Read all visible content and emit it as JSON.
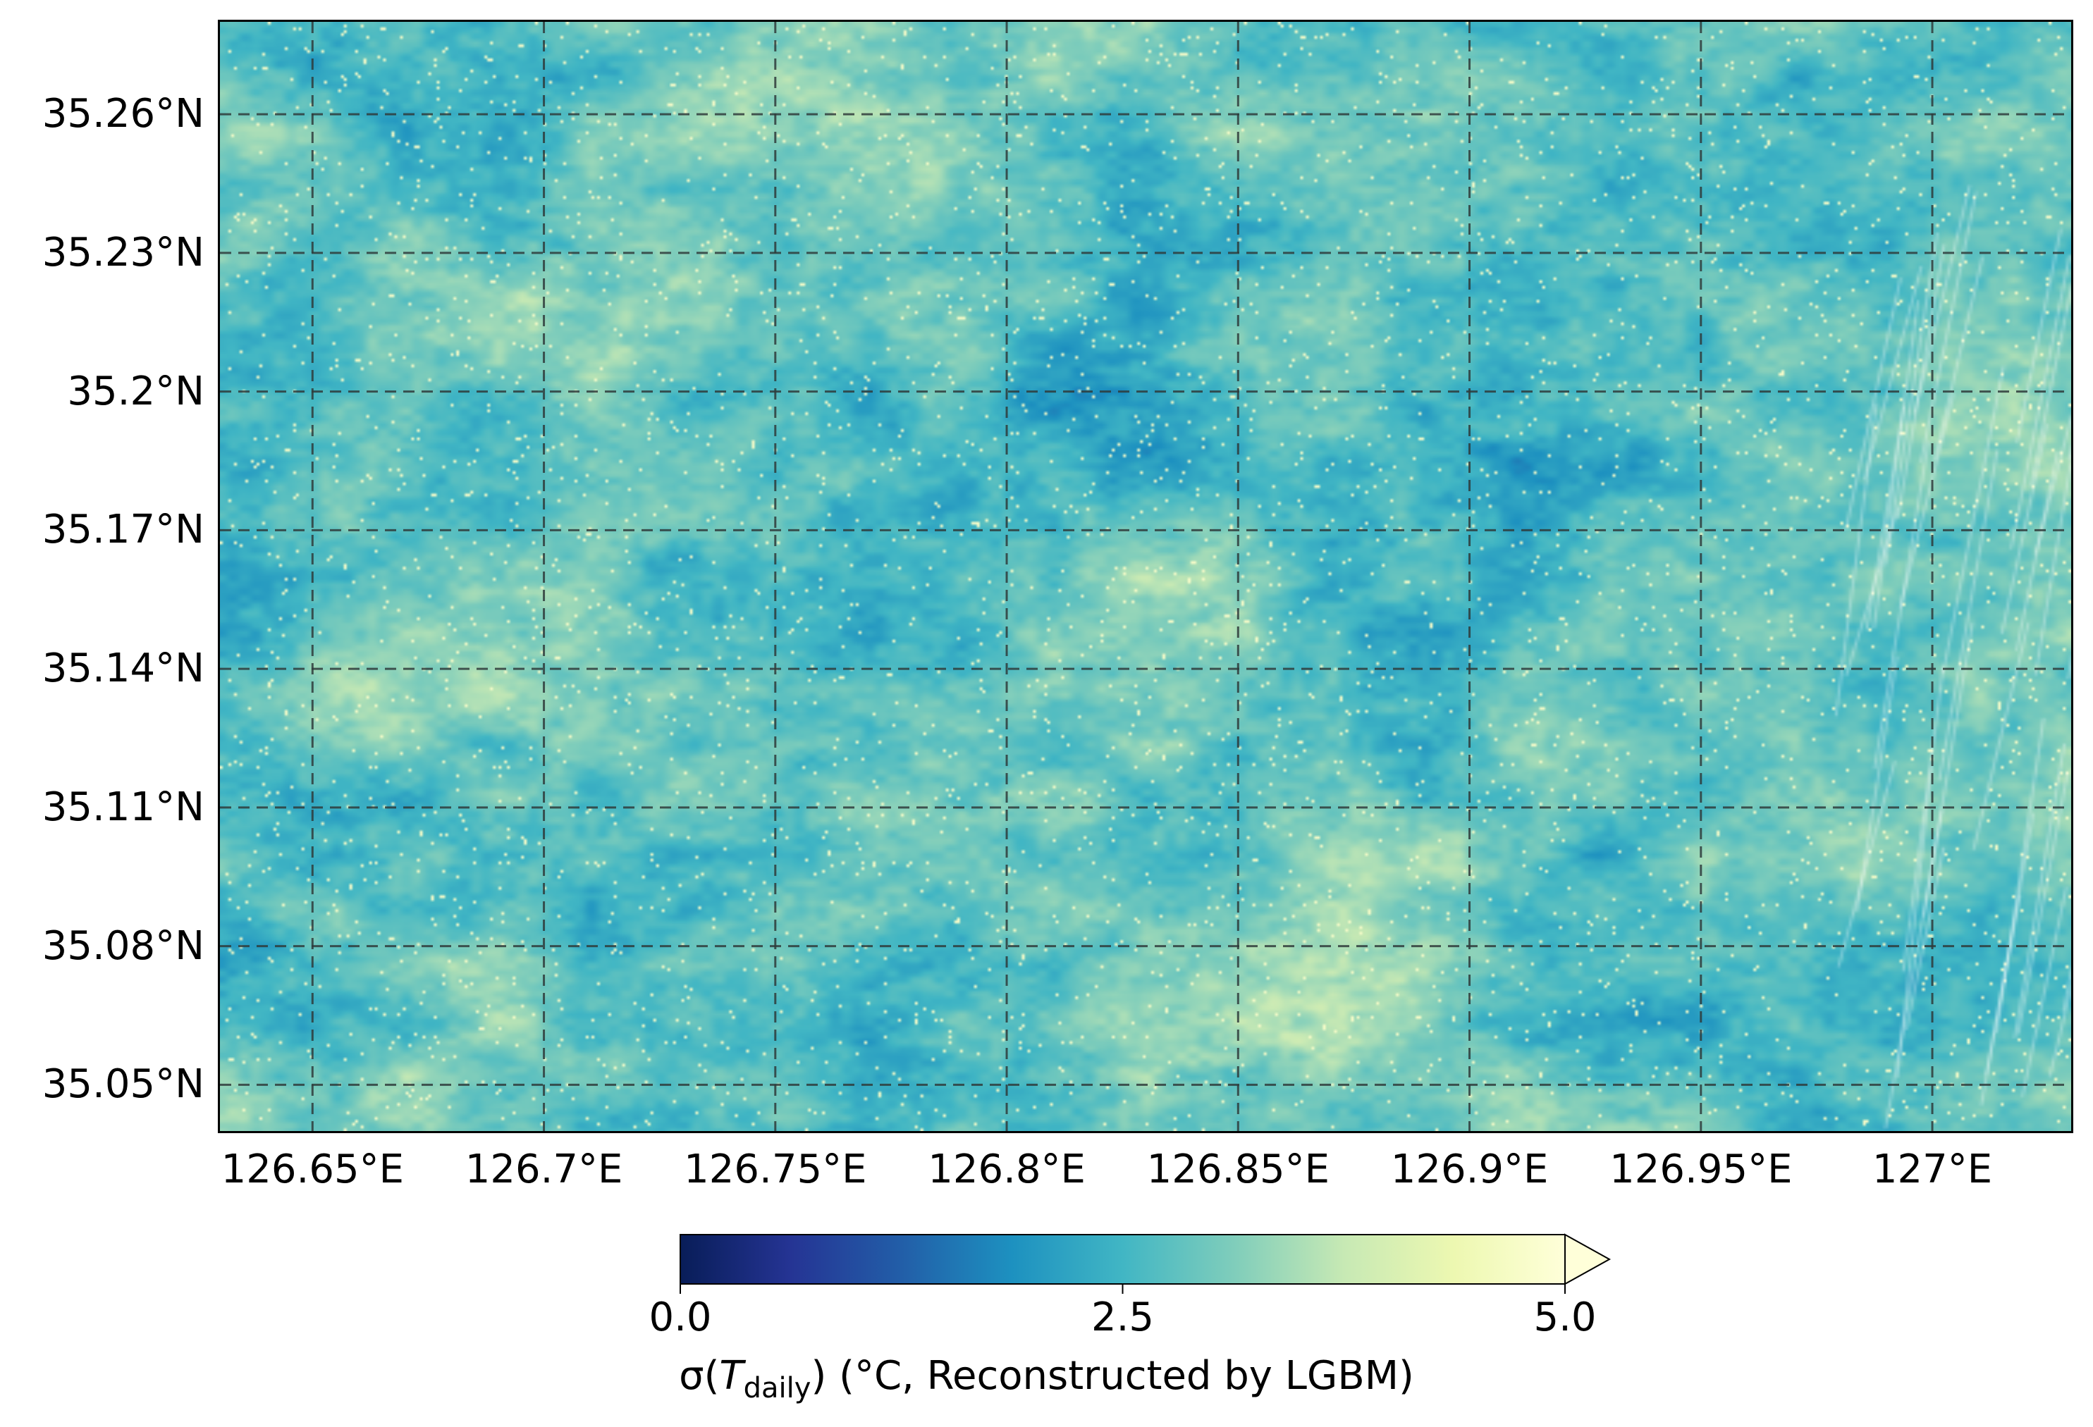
{
  "map": {
    "colormap": [
      "#081d58",
      "#253494",
      "#225ea8",
      "#1d91c0",
      "#41b6c4",
      "#7fcdbb",
      "#c7e9b4",
      "#edf8b1",
      "#ffffd9"
    ],
    "gridline_color": "#2f3b3b",
    "lat_ticks": [
      "35.26°N",
      "35.23°N",
      "35.2°N",
      "35.17°N",
      "35.14°N",
      "35.11°N",
      "35.08°N",
      "35.05°N"
    ],
    "lon_ticks": [
      "126.65°E",
      "126.7°E",
      "126.75°E",
      "126.8°E",
      "126.85°E",
      "126.9°E",
      "126.95°E",
      "127°E"
    ],
    "lat_values": [
      35.26,
      35.23,
      35.2,
      35.17,
      35.14,
      35.11,
      35.08,
      35.05
    ],
    "lon_values": [
      126.65,
      126.7,
      126.75,
      126.8,
      126.85,
      126.9,
      126.95,
      127.0
    ],
    "lat_range": [
      35.04,
      35.28
    ],
    "lon_range": [
      126.63,
      127.03
    ],
    "gridlines": "dashed"
  },
  "colorbar": {
    "min": 0.0,
    "max": 5.0,
    "extend": "max",
    "ticks": [
      "0.0",
      "2.5",
      "5.0"
    ],
    "label_symbol": "σ(",
    "label_var": "T",
    "label_sub": "daily",
    "label_rest": ") (°C, Reconstructed by LGBM)"
  }
}
